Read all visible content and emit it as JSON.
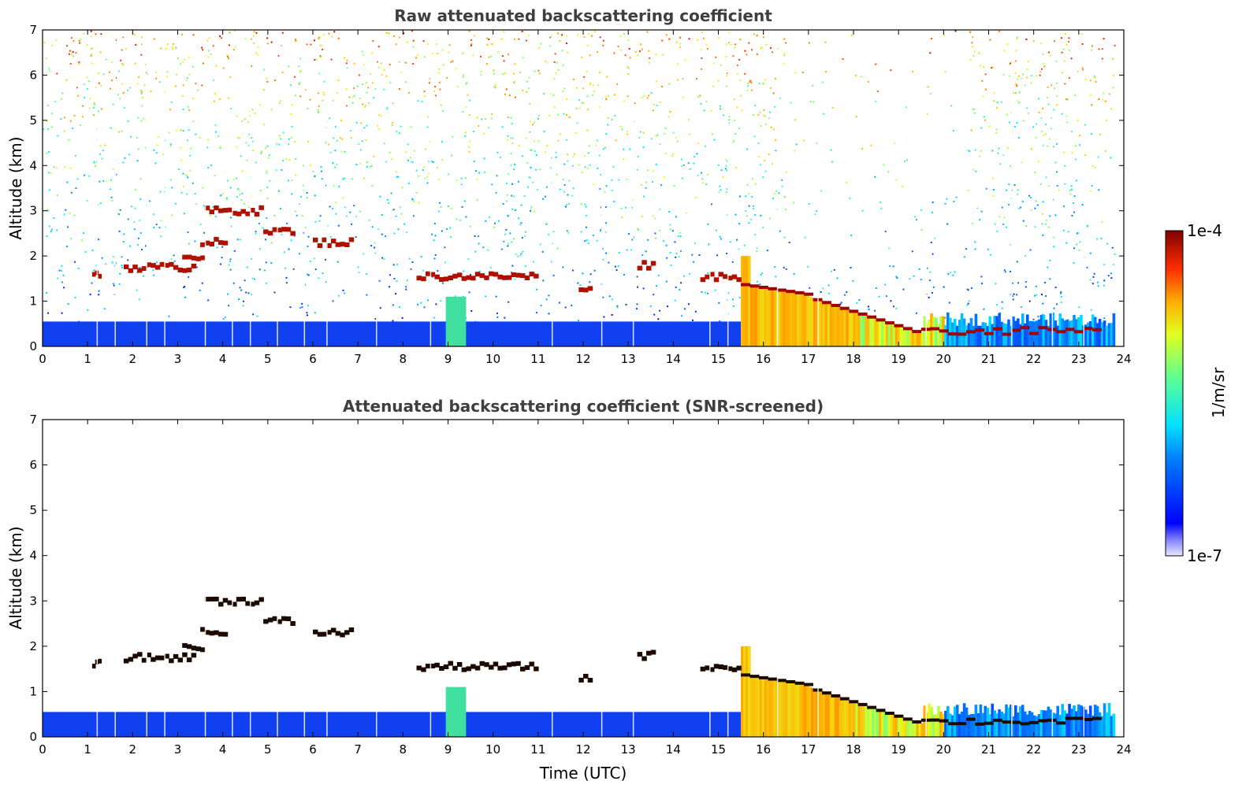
{
  "chart_data": [
    {
      "type": "heatmap",
      "title": "Raw attenuated backscattering coefficient",
      "xlabel": "",
      "ylabel": "Altitude (km)",
      "xlim": [
        0,
        24
      ],
      "ylim": [
        0,
        7
      ],
      "xticks": [
        "0",
        "1",
        "2",
        "3",
        "4",
        "5",
        "6",
        "7",
        "8",
        "9",
        "10",
        "11",
        "12",
        "13",
        "14",
        "15",
        "16",
        "17",
        "18",
        "19",
        "20",
        "21",
        "22",
        "23",
        "24"
      ],
      "yticks": [
        "0",
        "1",
        "2",
        "3",
        "4",
        "5",
        "6",
        "7"
      ],
      "screened": false,
      "features": {
        "surface_layer_top_km": 0.55,
        "dense_low_cloud_hours": [
          15.5,
          24
        ],
        "cloud_layers": [
          {
            "start": 1.1,
            "end": 1.3,
            "alt": 1.6
          },
          {
            "start": 1.8,
            "end": 3.4,
            "alt": 1.75
          },
          {
            "start": 3.1,
            "end": 3.6,
            "alt": 2.0
          },
          {
            "start": 3.5,
            "end": 4.1,
            "alt": 2.3
          },
          {
            "start": 3.6,
            "end": 4.9,
            "alt": 3.0
          },
          {
            "start": 4.9,
            "end": 5.6,
            "alt": 2.55
          },
          {
            "start": 6.0,
            "end": 6.9,
            "alt": 2.3
          },
          {
            "start": 8.3,
            "end": 11.0,
            "alt": 1.55
          },
          {
            "start": 11.9,
            "end": 12.2,
            "alt": 1.3
          },
          {
            "start": 13.2,
            "end": 13.6,
            "alt": 1.8
          },
          {
            "start": 14.6,
            "end": 15.5,
            "alt": 1.55
          }
        ]
      }
    },
    {
      "type": "heatmap",
      "title": "Attenuated backscattering coefficient (SNR-screened)",
      "xlabel": "Time (UTC)",
      "ylabel": "Altitude (km)",
      "xlim": [
        0,
        24
      ],
      "ylim": [
        0,
        7
      ],
      "xticks": [
        "0",
        "1",
        "2",
        "3",
        "4",
        "5",
        "6",
        "7",
        "8",
        "9",
        "10",
        "11",
        "12",
        "13",
        "14",
        "15",
        "16",
        "17",
        "18",
        "19",
        "20",
        "21",
        "22",
        "23",
        "24"
      ],
      "yticks": [
        "0",
        "1",
        "2",
        "3",
        "4",
        "5",
        "6",
        "7"
      ],
      "screened": true
    }
  ],
  "colorbar": {
    "label": "1/m/sr",
    "max_label": "1e-4",
    "min_label": "1e-7",
    "colormap": "jet"
  }
}
